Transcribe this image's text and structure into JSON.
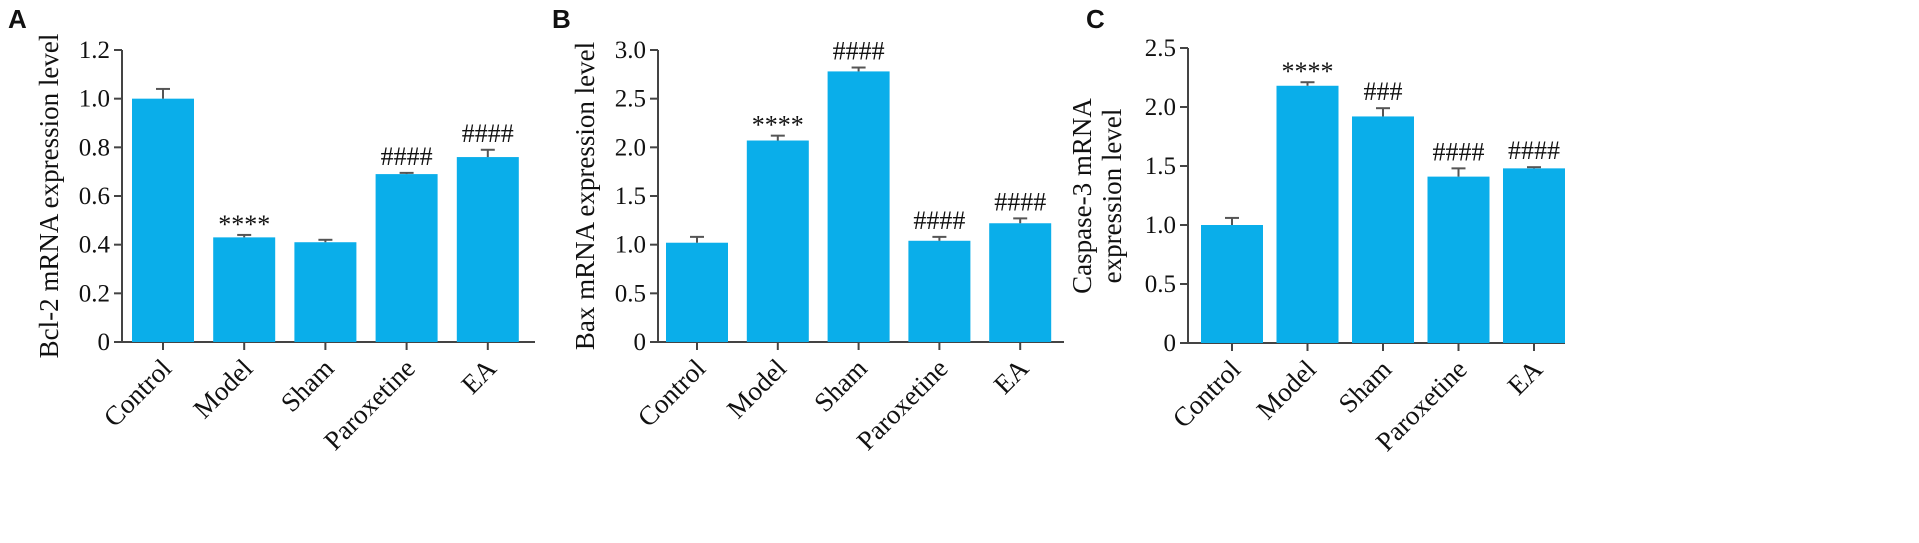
{
  "colors": {
    "bar": "#0aaeea",
    "axis": "#444444",
    "error": "#555555"
  },
  "chart_data": [
    {
      "type": "bar",
      "panel_label": "A",
      "ylabel": [
        "Bcl-2 mRNA expression level"
      ],
      "categories": [
        "Control",
        "Model",
        "Sham",
        "Paroxetine",
        "EA"
      ],
      "values": [
        1.0,
        0.43,
        0.41,
        0.69,
        0.76
      ],
      "errors": [
        0.04,
        0.01,
        0.01,
        0.005,
        0.03
      ],
      "annotations": [
        "",
        "****",
        "",
        "####",
        "####"
      ],
      "ylim": [
        0,
        1.2
      ],
      "yticks": [
        0,
        0.2,
        0.4,
        0.6,
        0.8,
        1.0,
        1.2
      ],
      "ytick_labels": [
        "0",
        "0.2",
        "0.4",
        "0.6",
        "0.8",
        "1.0",
        "1.2"
      ],
      "grid": false,
      "legend": "none"
    },
    {
      "type": "bar",
      "panel_label": "B",
      "ylabel": [
        "Bax mRNA expression level"
      ],
      "categories": [
        "Control",
        "Model",
        "Sham",
        "Paroxetine",
        "EA"
      ],
      "values": [
        1.02,
        2.07,
        2.78,
        1.04,
        1.22
      ],
      "errors": [
        0.06,
        0.05,
        0.04,
        0.04,
        0.05
      ],
      "annotations": [
        "",
        "****",
        "####",
        "####",
        "####"
      ],
      "ylim": [
        0,
        3.0
      ],
      "yticks": [
        0,
        0.5,
        1.0,
        1.5,
        2.0,
        2.5,
        3.0
      ],
      "ytick_labels": [
        "0",
        "0.5",
        "1.0",
        "1.5",
        "2.0",
        "2.5",
        "3.0"
      ],
      "grid": false,
      "legend": "none"
    },
    {
      "type": "bar",
      "panel_label": "C",
      "ylabel": [
        "Caspase-3 mRNA",
        "expression level"
      ],
      "categories": [
        "Control",
        "Model",
        "Sham",
        "Paroxetine",
        "EA"
      ],
      "values": [
        1.0,
        2.18,
        1.92,
        1.41,
        1.48
      ],
      "errors": [
        0.06,
        0.03,
        0.07,
        0.07,
        0.01
      ],
      "annotations": [
        "",
        "****",
        "###",
        "####",
        "####"
      ],
      "ylim": [
        0,
        2.5
      ],
      "yticks": [
        0,
        0.5,
        1.0,
        1.5,
        2.0,
        2.5
      ],
      "ytick_labels": [
        "0",
        "0.5",
        "1.0",
        "1.5",
        "2.0",
        "2.5"
      ],
      "grid": false,
      "legend": "none"
    }
  ]
}
